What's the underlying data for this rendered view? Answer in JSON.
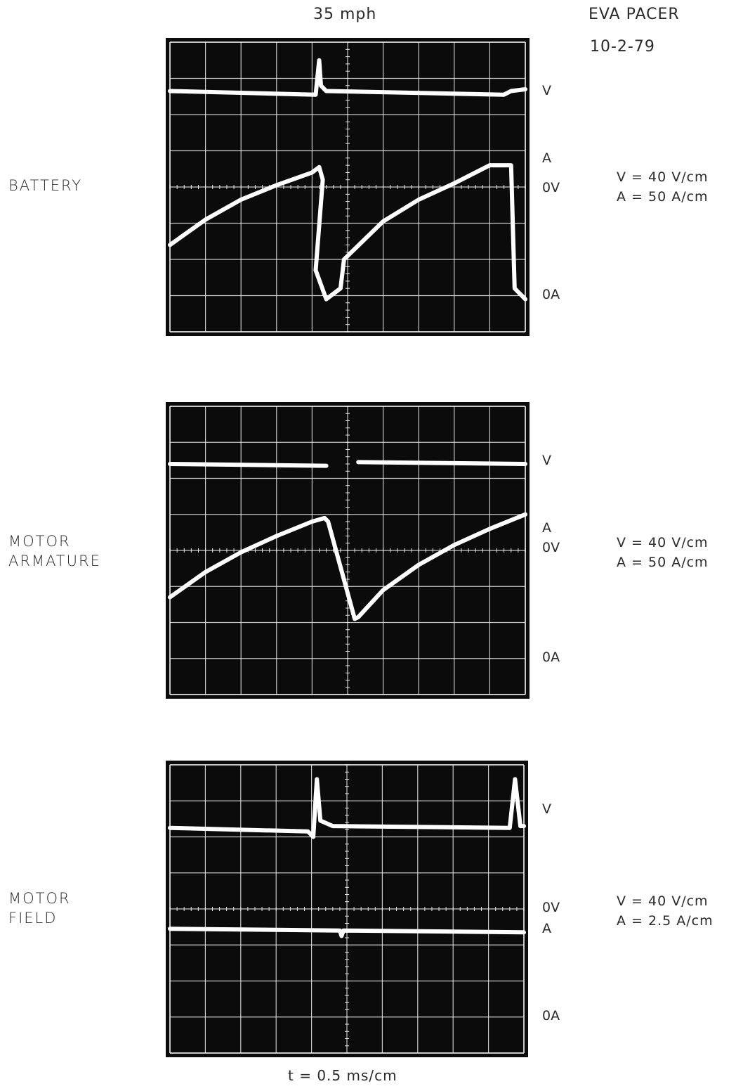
{
  "header": {
    "speed": "35 mph",
    "vehicle": "EVA PACER",
    "date": "10-2-79"
  },
  "timebase": "t = 0.5 ms/cm",
  "colors": {
    "screen": "#0b0b0b",
    "grid": "#e8e8e8",
    "trace": "#ffffff"
  },
  "chart_data": [
    {
      "type": "line",
      "title": "BATTERY",
      "trace_labels": {
        "v": "V",
        "a": "A",
        "zero_v": "0V",
        "zero_a": "0A"
      },
      "scale": {
        "v": "V = 40 V/cm",
        "a": "A = 50 A/cm"
      },
      "grid": {
        "divisions_x": 10,
        "divisions_y": 8
      },
      "series": [
        {
          "name": "V",
          "points": [
            [
              0,
              1.35
            ],
            [
              4.1,
              1.45
            ],
            [
              4.2,
              0.5
            ],
            [
              4.25,
              1.2
            ],
            [
              4.4,
              1.35
            ],
            [
              9.4,
              1.45
            ],
            [
              9.6,
              1.35
            ],
            [
              10,
              1.3
            ]
          ]
        },
        {
          "name": "A",
          "points": [
            [
              0,
              5.6
            ],
            [
              1,
              4.9
            ],
            [
              2,
              4.35
            ],
            [
              3,
              3.95
            ],
            [
              4,
              3.6
            ],
            [
              4.2,
              3.45
            ],
            [
              4.3,
              3.8
            ],
            [
              4.1,
              6.3
            ],
            [
              4.4,
              7.1
            ],
            [
              4.8,
              6.8
            ],
            [
              4.9,
              6.0
            ],
            [
              6,
              4.95
            ],
            [
              7,
              4.35
            ],
            [
              8,
              3.9
            ],
            [
              9,
              3.4
            ],
            [
              9.6,
              3.4
            ],
            [
              9.7,
              6.8
            ],
            [
              10,
              7.1
            ]
          ]
        }
      ]
    },
    {
      "type": "line",
      "title": "MOTOR\nARMATURE",
      "trace_labels": {
        "v": "V",
        "a": "A",
        "zero_v": "0V",
        "zero_a": "0A"
      },
      "scale": {
        "v": "V = 40 V/cm",
        "a": "A = 50 A/cm"
      },
      "grid": {
        "divisions_x": 10,
        "divisions_y": 8
      },
      "series": [
        {
          "name": "V",
          "points": [
            [
              0,
              1.6
            ],
            [
              4.4,
              1.65
            ],
            null,
            [
              5.3,
              1.55
            ],
            [
              10,
              1.6
            ]
          ]
        },
        {
          "name": "A",
          "points": [
            [
              0,
              5.3
            ],
            [
              1,
              4.6
            ],
            [
              2,
              4.05
            ],
            [
              3,
              3.6
            ],
            [
              4,
              3.2
            ],
            [
              4.35,
              3.1
            ],
            [
              4.45,
              3.2
            ],
            [
              5.2,
              5.9
            ],
            [
              5.3,
              5.85
            ],
            [
              6,
              5.1
            ],
            [
              7,
              4.4
            ],
            [
              8,
              3.85
            ],
            [
              9,
              3.4
            ],
            [
              10,
              3.0
            ]
          ]
        }
      ]
    },
    {
      "type": "line",
      "title": "MOTOR\nFIELD",
      "trace_labels": {
        "v": "V",
        "a": "A",
        "zero_v": "0V",
        "zero_a": "0A"
      },
      "scale": {
        "v": "V = 40 V/cm",
        "a": "A = 2.5 A/cm"
      },
      "grid": {
        "divisions_x": 10,
        "divisions_y": 8
      },
      "series": [
        {
          "name": "V",
          "points": [
            [
              0,
              1.75
            ],
            [
              3.9,
              1.85
            ],
            [
              4.05,
              2.0
            ],
            [
              4.15,
              0.4
            ],
            [
              4.25,
              1.55
            ],
            [
              4.6,
              1.7
            ],
            [
              9.6,
              1.75
            ],
            [
              9.75,
              0.4
            ],
            [
              9.9,
              1.7
            ],
            [
              10,
              1.7
            ]
          ]
        },
        {
          "name": "A",
          "points": [
            [
              0,
              4.55
            ],
            [
              4.8,
              4.6
            ],
            [
              4.85,
              4.75
            ],
            [
              4.9,
              4.6
            ],
            [
              10,
              4.65
            ]
          ]
        }
      ]
    }
  ]
}
